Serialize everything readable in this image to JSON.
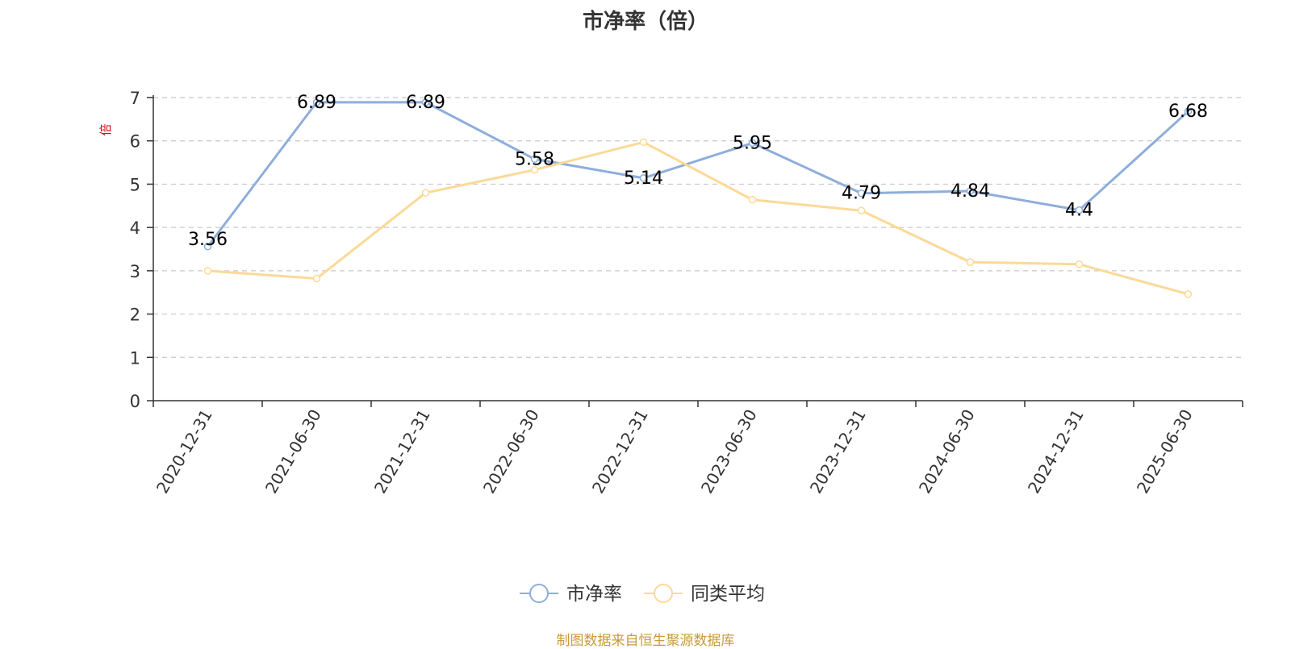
{
  "footer": {
    "source": "制图数据来自恒生聚源数据库"
  },
  "colors": {
    "series1": "#8eaedb",
    "series2": "#fcd997",
    "ylabel": "#e0001b",
    "source": "#c89b3c",
    "axis": "#333333",
    "grid": "#c8c8c8"
  },
  "chart_data": {
    "type": "line",
    "title": "市净率（倍）",
    "ylabel": "倍",
    "ylim": [
      0,
      7
    ],
    "yticks": [
      0,
      1,
      2,
      3,
      4,
      5,
      6,
      7
    ],
    "grid": "horizontal-dashed",
    "legend_position": "bottom-center",
    "categories": [
      "2020-12-31",
      "2021-06-30",
      "2021-12-31",
      "2022-06-30",
      "2022-12-31",
      "2023-06-30",
      "2023-12-31",
      "2024-06-30",
      "2024-12-31",
      "2025-06-30"
    ],
    "series": [
      {
        "name": "市净率",
        "values": [
          3.56,
          6.89,
          6.89,
          5.58,
          5.14,
          5.95,
          4.79,
          4.84,
          4.4,
          6.68
        ],
        "labels": [
          "3.56",
          "6.89",
          "6.89",
          "5.58",
          "5.14",
          "5.95",
          "4.79",
          "4.84",
          "4.4",
          "6.68"
        ]
      },
      {
        "name": "同类平均",
        "values": [
          3.0,
          2.82,
          4.8,
          5.33,
          5.97,
          4.64,
          4.39,
          3.2,
          3.15,
          2.46
        ]
      }
    ]
  }
}
